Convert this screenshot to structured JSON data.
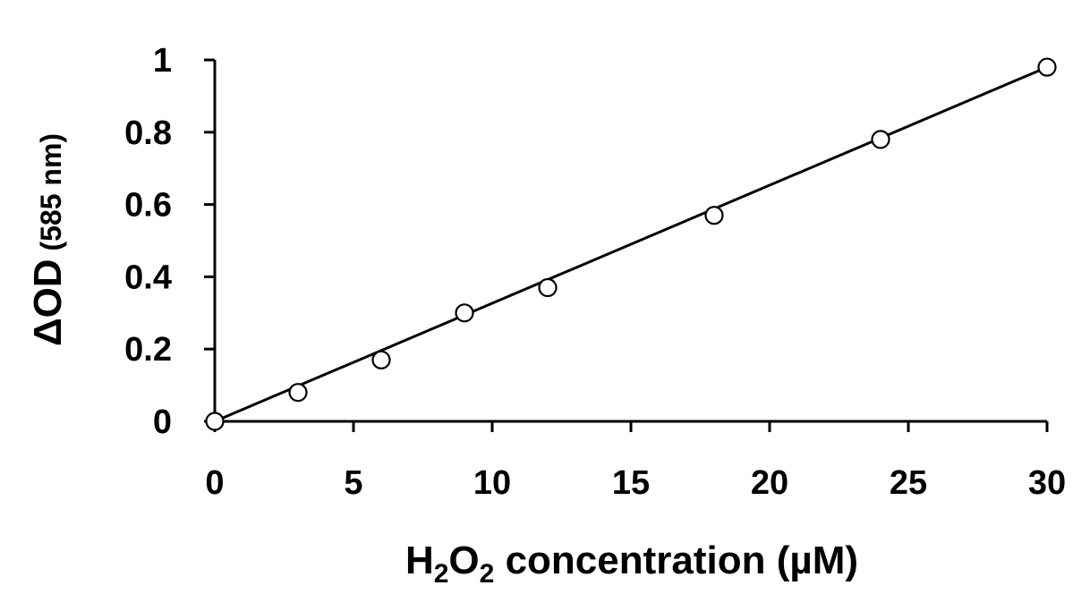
{
  "chart_data": {
    "type": "scatter",
    "title": "",
    "xlabel": {
      "main": "H",
      "sub1": "2",
      "mid": "O",
      "sub2": "2",
      "rest": " concentration (µM)"
    },
    "ylabel": {
      "main": "ΔOD",
      "unit": " (585 nm)"
    },
    "xlim": [
      0,
      30
    ],
    "ylim": [
      0,
      1
    ],
    "x_ticks": [
      "0",
      "5",
      "10",
      "15",
      "20",
      "25",
      "30"
    ],
    "x_tick_values": [
      0,
      5,
      10,
      15,
      20,
      25,
      30
    ],
    "y_ticks": [
      "0",
      "0.2",
      "0.4",
      "0.6",
      "0.8",
      "1"
    ],
    "y_tick_values": [
      0,
      0.2,
      0.4,
      0.6,
      0.8,
      1
    ],
    "grid": false,
    "series": [
      {
        "marker": "open-circle",
        "x": [
          0,
          3,
          6,
          9,
          12,
          18,
          24,
          30
        ],
        "y": [
          0,
          0.08,
          0.17,
          0.3,
          0.37,
          0.57,
          0.78,
          0.98
        ]
      }
    ],
    "trendline": {
      "type": "linear",
      "x": [
        0,
        30
      ],
      "y": [
        0,
        0.98
      ]
    },
    "colors": {
      "marks": "#000000",
      "marker_fill": "#ffffff"
    }
  }
}
